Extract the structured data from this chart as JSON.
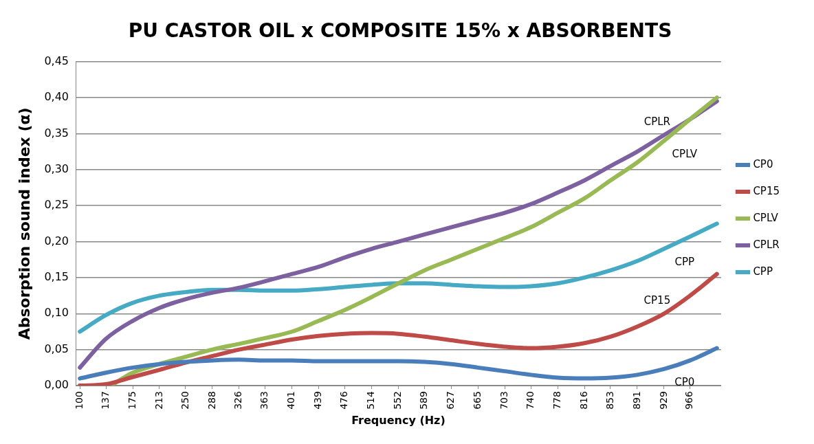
{
  "chart_data": {
    "type": "line",
    "title": "PU CASTOR OIL x COMPOSITE 15% x ABSORBENTS",
    "xlabel": "Frequency (Hz)",
    "ylabel": "Absorption sound index (α)",
    "x": [
      100,
      137,
      175,
      213,
      250,
      288,
      326,
      363,
      401,
      439,
      476,
      514,
      552,
      589,
      627,
      665,
      703,
      740,
      778,
      816,
      853,
      891,
      929,
      966,
      1004
    ],
    "series": [
      {
        "name": "CP0",
        "color": "#4a7ebb",
        "values": [
          0.01,
          0.018,
          0.025,
          0.03,
          0.033,
          0.035,
          0.036,
          0.035,
          0.035,
          0.034,
          0.034,
          0.034,
          0.034,
          0.033,
          0.03,
          0.025,
          0.02,
          0.015,
          0.011,
          0.01,
          0.011,
          0.015,
          0.023,
          0.035,
          0.052
        ]
      },
      {
        "name": "CP15",
        "color": "#be4b48",
        "values": [
          0,
          0.002,
          0.012,
          0.022,
          0.032,
          0.041,
          0.05,
          0.057,
          0.064,
          0.069,
          0.072,
          0.073,
          0.072,
          0.068,
          0.063,
          0.058,
          0.054,
          0.052,
          0.054,
          0.059,
          0.068,
          0.082,
          0.1,
          0.125,
          0.155
        ]
      },
      {
        "name": "CPLV",
        "color": "#98b954",
        "values": [
          0,
          0,
          0.018,
          0.03,
          0.04,
          0.05,
          0.058,
          0.066,
          0.075,
          0.09,
          0.105,
          0.123,
          0.142,
          0.16,
          0.175,
          0.19,
          0.205,
          0.22,
          0.24,
          0.26,
          0.285,
          0.31,
          0.34,
          0.37,
          0.4
        ]
      },
      {
        "name": "CPLR",
        "color": "#7d60a0",
        "values": [
          0.025,
          0.065,
          0.09,
          0.108,
          0.12,
          0.129,
          0.136,
          0.145,
          0.155,
          0.165,
          0.178,
          0.19,
          0.2,
          0.21,
          0.22,
          0.23,
          0.24,
          0.252,
          0.268,
          0.285,
          0.305,
          0.325,
          0.348,
          0.37,
          0.395
        ]
      },
      {
        "name": "CPP",
        "color": "#46aac5",
        "values": [
          0.075,
          0.098,
          0.115,
          0.125,
          0.13,
          0.133,
          0.133,
          0.132,
          0.132,
          0.134,
          0.137,
          0.14,
          0.142,
          0.142,
          0.14,
          0.138,
          0.137,
          0.138,
          0.142,
          0.15,
          0.16,
          0.173,
          0.19,
          0.207,
          0.225
        ]
      }
    ],
    "xlim": [
      94,
      1010
    ],
    "xticks": [
      100,
      137,
      175,
      213,
      250,
      288,
      326,
      363,
      401,
      439,
      476,
      514,
      552,
      589,
      627,
      665,
      703,
      740,
      778,
      816,
      853,
      891,
      929,
      966
    ],
    "ylim": [
      0,
      0.45
    ],
    "yticks": [
      {
        "value": 0,
        "label": "0,00"
      },
      {
        "value": 0.05,
        "label": "0,05"
      },
      {
        "value": 0.1,
        "label": "0,10"
      },
      {
        "value": 0.15,
        "label": "0,15"
      },
      {
        "value": 0.2,
        "label": "0,20"
      },
      {
        "value": 0.25,
        "label": "0,25"
      },
      {
        "value": 0.3,
        "label": "0,30"
      },
      {
        "value": 0.35,
        "label": "0,35"
      },
      {
        "value": 0.4,
        "label": "0,40"
      },
      {
        "value": 0.45,
        "label": "0,45"
      }
    ],
    "grid": "y",
    "legend": "right",
    "marker": "none",
    "line_style": "solid"
  }
}
